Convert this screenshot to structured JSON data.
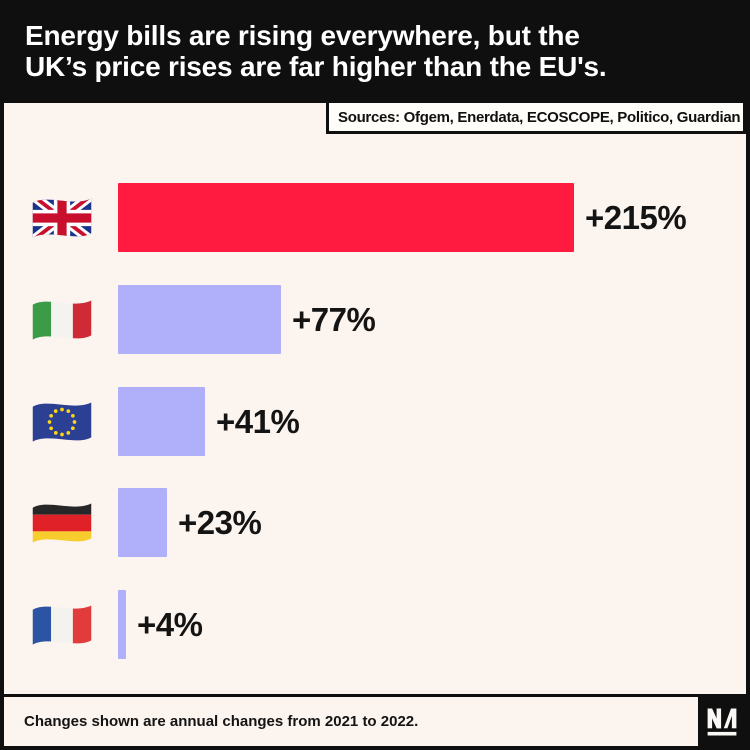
{
  "colors": {
    "background": "#FCF4EE",
    "frame": "#0f0f0f",
    "header_bg": "#0f0f0f",
    "header_text": "#ffffff",
    "highlight_bar": "#FF1A40",
    "default_bar": "#AFAFFA",
    "text": "#141414"
  },
  "header": {
    "title_line1": "Energy bills are rising everywhere, but the",
    "title_line2": "UK’s price rises are far higher than the EU's."
  },
  "sources": {
    "label": "Sources: Ofgem, Enerdata, ECOSCOPE, Politico, Guardian"
  },
  "chart_data": {
    "type": "bar",
    "orientation": "horizontal",
    "title": "Energy bills are rising everywhere, but the UK’s price rises are far higher than the EU's.",
    "categories": [
      "United Kingdom",
      "Italy",
      "European Union",
      "Germany",
      "France"
    ],
    "values": [
      215,
      77,
      41,
      23,
      4
    ],
    "value_labels": [
      "+215%",
      "+77%",
      "+41%",
      "+23%",
      "+4%"
    ],
    "flags": [
      "uk",
      "italy",
      "eu",
      "germany",
      "france"
    ],
    "bar_colors": [
      "#FF1A40",
      "#AFAFFA",
      "#AFAFFA",
      "#AFAFFA",
      "#AFAFFA"
    ],
    "unit": "percent annual change in energy bills",
    "xlim": [
      0,
      215
    ],
    "grid": false,
    "legend": false,
    "axes_shown": false,
    "note": "Changes shown are annual changes from 2021 to 2022.",
    "sources": "Ofgem, Enerdata, ECOSCOPE, Politico, Guardian"
  },
  "footer": {
    "note": "Changes shown are annual changes from 2021 to 2022.",
    "logo_monogram": "NM"
  }
}
